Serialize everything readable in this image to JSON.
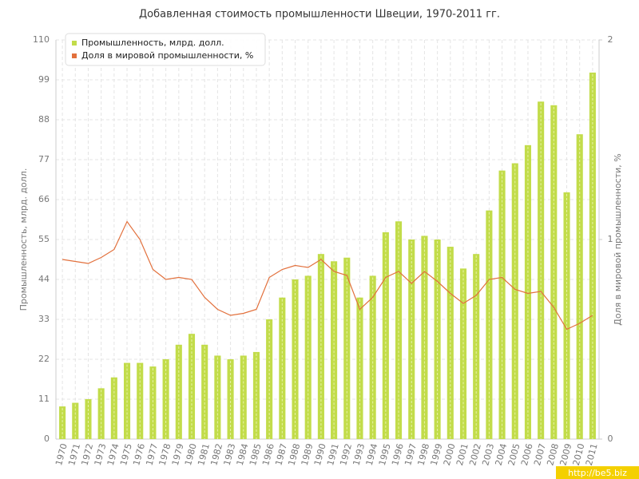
{
  "chart_data": {
    "type": "combo",
    "title": "Добавленная стоимость промышленности Швеции, 1970-2011 гг.",
    "ylabel": "Промышленность, млрд. долл.",
    "y2label": "Доля в мировой промышленности, %",
    "watermark": "http://be5.biz",
    "categories": [
      "1970",
      "1971",
      "1972",
      "1973",
      "1974",
      "1975",
      "1976",
      "1977",
      "1978",
      "1979",
      "1980",
      "1981",
      "1982",
      "1983",
      "1984",
      "1985",
      "1986",
      "1987",
      "1988",
      "1989",
      "1990",
      "1991",
      "1992",
      "1993",
      "1994",
      "1995",
      "1996",
      "1997",
      "1998",
      "1999",
      "2000",
      "2001",
      "2002",
      "2003",
      "2004",
      "2005",
      "2006",
      "2007",
      "2008",
      "2009",
      "2010",
      "2011"
    ],
    "series": [
      {
        "name": "Промышленность, млрд. долл.",
        "type": "bar",
        "color": "#c2dc4a",
        "values": [
          9,
          10,
          11,
          14,
          17,
          21,
          21,
          20,
          22,
          26,
          29,
          26,
          23,
          22,
          23,
          24,
          33,
          39,
          44,
          45,
          51,
          49,
          50,
          39,
          45,
          57,
          60,
          55,
          56,
          55,
          53,
          47,
          51,
          63,
          74,
          76,
          81,
          93,
          92,
          68,
          84,
          101
        ]
      },
      {
        "name": "Доля в мировой промышленности, %",
        "type": "line",
        "color": "#e2703c",
        "axis": "y2",
        "values": [
          0.9,
          0.89,
          0.88,
          0.91,
          0.95,
          1.09,
          1.0,
          0.85,
          0.8,
          0.81,
          0.8,
          0.71,
          0.65,
          0.62,
          0.63,
          0.65,
          0.81,
          0.85,
          0.87,
          0.86,
          0.9,
          0.84,
          0.82,
          0.65,
          0.71,
          0.81,
          0.84,
          0.78,
          0.84,
          0.79,
          0.73,
          0.68,
          0.72,
          0.8,
          0.81,
          0.75,
          0.73,
          0.74,
          0.66,
          0.55,
          0.58,
          0.62
        ]
      }
    ],
    "ylim": [
      0,
      110
    ],
    "yticks": [
      0,
      11,
      22,
      33,
      44,
      55,
      66,
      77,
      88,
      99,
      110
    ],
    "y2lim": [
      0,
      2
    ],
    "y2ticks": [
      0,
      1,
      2
    ],
    "grid": true,
    "legend": "top-left"
  }
}
